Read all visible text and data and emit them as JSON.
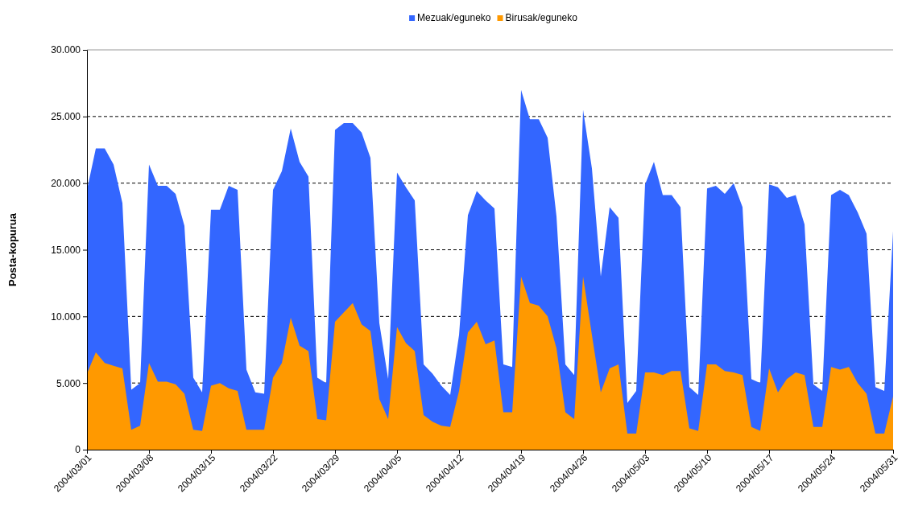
{
  "chart_data": {
    "type": "area",
    "ylabel": "Posta-kopurua",
    "legend": "top",
    "grid": "y",
    "line_style": "dashed",
    "categories": [
      "2004/03/01",
      null,
      null,
      null,
      null,
      null,
      null,
      "2004/03/08",
      null,
      null,
      null,
      null,
      null,
      null,
      "2004/03/15",
      null,
      null,
      null,
      null,
      null,
      null,
      "2004/03/22",
      null,
      null,
      null,
      null,
      null,
      null,
      "2004/03/29",
      null,
      null,
      null,
      null,
      null,
      null,
      "2004/04/05",
      null,
      null,
      null,
      null,
      null,
      null,
      "2004/04/12",
      null,
      null,
      null,
      null,
      null,
      null,
      "2004/04/19",
      null,
      null,
      null,
      null,
      null,
      null,
      "2004/04/26",
      null,
      null,
      null,
      null,
      null,
      null,
      "2004/05/03",
      null,
      null,
      null,
      null,
      null,
      null,
      "2004/05/10",
      null,
      null,
      null,
      null,
      null,
      null,
      "2004/05/17",
      null,
      null,
      null,
      null,
      null,
      null,
      "2004/05/24",
      null,
      null,
      null,
      null,
      null,
      null,
      "2004/05/31"
    ],
    "ylim": [
      0,
      30000
    ],
    "yticks": [
      {
        "value": 0,
        "label": "0"
      },
      {
        "value": 5000,
        "label": "5.000"
      },
      {
        "value": 10000,
        "label": "10.000"
      },
      {
        "value": 15000,
        "label": "15.000"
      },
      {
        "value": 20000,
        "label": "20.000"
      },
      {
        "value": 25000,
        "label": "25.000"
      },
      {
        "value": 30000,
        "label": "30.000"
      }
    ],
    "series": [
      {
        "name": "Mezuak/eguneko",
        "color": "#3366ff",
        "values": [
          19500,
          22600,
          22600,
          21400,
          18500,
          4500,
          5000,
          21400,
          19800,
          19800,
          19200,
          16800,
          5400,
          4300,
          18000,
          18000,
          19800,
          19500,
          6000,
          4300,
          4200,
          19500,
          20900,
          24100,
          21600,
          20500,
          5400,
          5000,
          24000,
          24500,
          24500,
          23800,
          21900,
          9500,
          5300,
          20800,
          19700,
          18700,
          6400,
          5700,
          4800,
          4100,
          8600,
          17600,
          19400,
          18700,
          18100,
          6400,
          6200,
          27000,
          24800,
          24800,
          23400,
          17500,
          6400,
          5600,
          25500,
          21100,
          13000,
          18200,
          17400,
          3500,
          4400,
          19900,
          21600,
          19100,
          19100,
          18200,
          4700,
          4100,
          19600,
          19800,
          19200,
          20000,
          18200,
          5300,
          5000,
          19900,
          19700,
          18900,
          19100,
          16900,
          4900,
          4400,
          19100,
          19500,
          19100,
          17800,
          16200,
          4700,
          4400,
          16400
        ]
      },
      {
        "name": "Birusak/eguneko",
        "color": "#ff9900",
        "values": [
          5700,
          7300,
          6500,
          6300,
          6100,
          1500,
          1800,
          6500,
          5100,
          5100,
          4900,
          4200,
          1500,
          1400,
          4800,
          5000,
          4600,
          4400,
          1500,
          1500,
          1500,
          5400,
          6500,
          9900,
          7800,
          7400,
          2300,
          2200,
          9600,
          10300,
          11000,
          9400,
          8900,
          3800,
          2300,
          9200,
          8000,
          7400,
          2600,
          2100,
          1800,
          1700,
          4400,
          8800,
          9600,
          7900,
          8200,
          2800,
          2800,
          13000,
          11000,
          10800,
          10000,
          7600,
          2800,
          2300,
          13000,
          8600,
          4300,
          6100,
          6400,
          1200,
          1200,
          5800,
          5800,
          5600,
          5900,
          5900,
          1600,
          1400,
          6400,
          6400,
          5900,
          5800,
          5600,
          1700,
          1400,
          6100,
          4300,
          5300,
          5800,
          5600,
          1700,
          1700,
          6200,
          6000,
          6200,
          5000,
          4200,
          1200,
          1200,
          4000
        ]
      }
    ]
  }
}
